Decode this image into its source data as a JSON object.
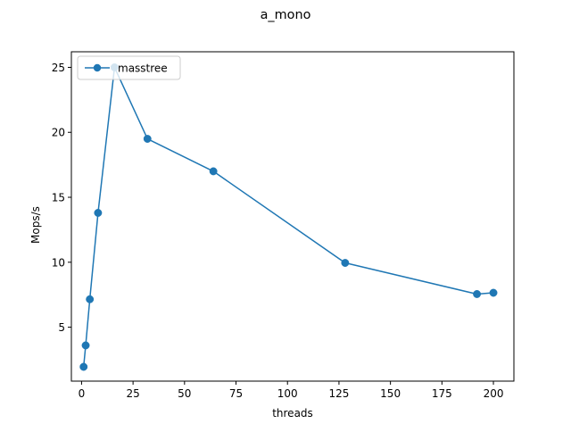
{
  "chart_data": {
    "type": "line",
    "title": "a_mono",
    "xlabel": "threads",
    "ylabel": "Mops/s",
    "xlim": [
      -4.95,
      209.95
    ],
    "ylim": [
      0.85,
      26.2
    ],
    "xticks": [
      0,
      25,
      50,
      75,
      100,
      125,
      150,
      175,
      200
    ],
    "xtick_labels": [
      "0",
      "25",
      "50",
      "75",
      "100",
      "125",
      "150",
      "175",
      "200"
    ],
    "yticks": [
      5,
      10,
      15,
      20,
      25
    ],
    "ytick_labels": [
      "5",
      "10",
      "15",
      "20",
      "25"
    ],
    "grid": false,
    "legend_position": "upper-left",
    "series": [
      {
        "name": "masstree",
        "color": "#1f77b4",
        "marker": "circle",
        "x": [
          1,
          2,
          4,
          8,
          16,
          32,
          64,
          128,
          192,
          200
        ],
        "y": [
          1.95,
          3.6,
          7.15,
          13.8,
          25.0,
          19.5,
          17.0,
          9.95,
          7.55,
          7.65
        ]
      }
    ]
  }
}
